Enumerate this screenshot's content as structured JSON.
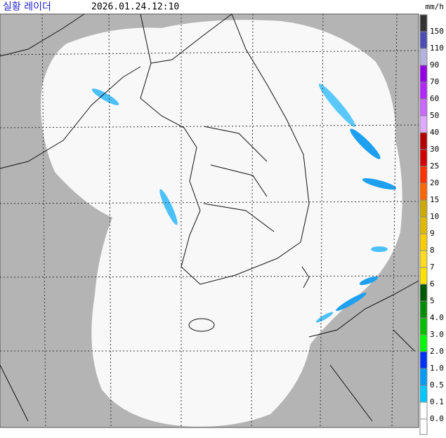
{
  "header": {
    "title": "실황 레이더",
    "time": "2026.01.24.12:10"
  },
  "legend": {
    "unit": "mm/h",
    "top_color": "#333333",
    "levels": [
      {
        "label": "150",
        "color": "#000390"
      },
      {
        "label": "110",
        "color": "#4c4eb1"
      },
      {
        "label": "90",
        "color": "#b3b4de"
      },
      {
        "label": "70",
        "color": "#9300e4"
      },
      {
        "label": "60",
        "color": "#b229ff"
      },
      {
        "label": "50",
        "color": "#c969ff"
      },
      {
        "label": "40",
        "color": "#e0a9ff"
      },
      {
        "label": "30",
        "color": "#b40000"
      },
      {
        "label": "25",
        "color": "#d20000"
      },
      {
        "label": "20",
        "color": "#ff3300"
      },
      {
        "label": "15",
        "color": "#ff6600"
      },
      {
        "label": "10",
        "color": "#ccaa00"
      },
      {
        "label": "9",
        "color": "#e0b900"
      },
      {
        "label": "8",
        "color": "#f9cd00"
      },
      {
        "label": "7",
        "color": "#ffdc1f"
      },
      {
        "label": "6",
        "color": "#ffe100"
      },
      {
        "label": "5",
        "color": "#005a00"
      },
      {
        "label": "4.0",
        "color": "#008c00"
      },
      {
        "label": "3.0",
        "color": "#00be00"
      },
      {
        "label": "2.0",
        "color": "#00ff00"
      },
      {
        "label": "1.0",
        "color": "#0033f5"
      },
      {
        "label": "0.5",
        "color": "#009bf5"
      },
      {
        "label": "0.1",
        "color": "#00c8ff"
      },
      {
        "label": "0.0",
        "color": "#ffffff"
      }
    ]
  }
}
